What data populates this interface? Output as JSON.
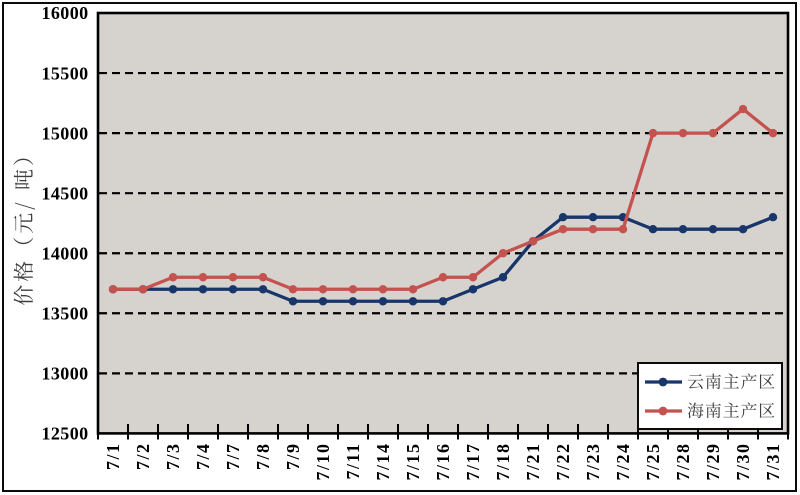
{
  "chart_data": {
    "type": "line",
    "ylabel": "价格（元/吨）",
    "xlabel": "",
    "categories": [
      "7/1",
      "7/2",
      "7/3",
      "7/4",
      "7/7",
      "7/8",
      "7/9",
      "7/10",
      "7/11",
      "7/14",
      "7/15",
      "7/16",
      "7/17",
      "7/18",
      "7/21",
      "7/22",
      "7/23",
      "7/24",
      "7/25",
      "7/28",
      "7/29",
      "7/30",
      "7/31"
    ],
    "series": [
      {
        "name": "云南主产区",
        "color": "#18366b",
        "values": [
          13700,
          13700,
          13700,
          13700,
          13700,
          13700,
          13600,
          13600,
          13600,
          13600,
          13600,
          13600,
          13700,
          13800,
          14100,
          14300,
          14300,
          14300,
          14200,
          14200,
          14200,
          14200,
          14300
        ]
      },
      {
        "name": "海南主产区",
        "color": "#c4524e",
        "values": [
          13700,
          13700,
          13800,
          13800,
          13800,
          13800,
          13700,
          13700,
          13700,
          13700,
          13700,
          13800,
          13800,
          14000,
          14100,
          14200,
          14200,
          14200,
          15000,
          15000,
          15000,
          15200,
          15000
        ]
      }
    ],
    "ylim": [
      12500,
      16000
    ],
    "ytick_step": 500,
    "yticks": [
      12500,
      13000,
      13500,
      14000,
      14500,
      15000,
      15500,
      16000
    ],
    "grid": "dashed-horizontal",
    "legend_position": "inside-bottom-right",
    "plot_background": "#d6d3ce",
    "axis_color": "#000000"
  }
}
